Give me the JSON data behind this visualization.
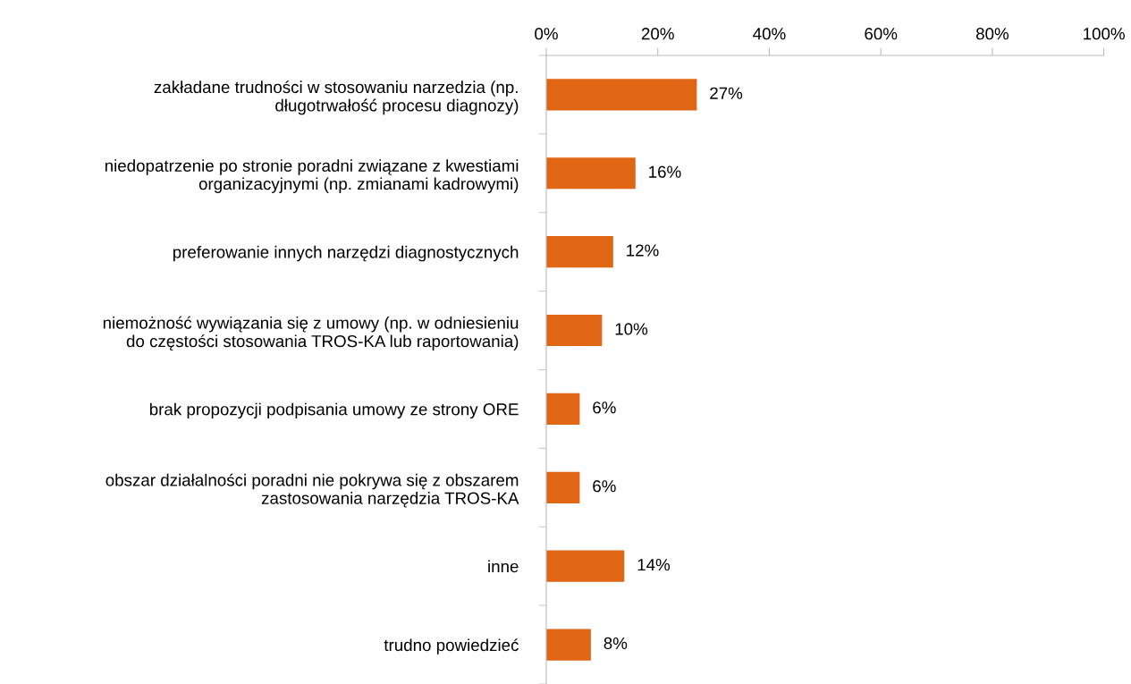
{
  "chart_data": {
    "type": "bar",
    "orientation": "horizontal",
    "categories": [
      "zakładane trudności w stosowaniu narzedzia (np.\ndługotrwałość procesu diagnozy)",
      "niedopatrzenie po stronie poradni związane z kwestiami\norganizacyjnymi (np. zmianami kadrowymi)",
      "preferowanie innych narzędzi diagnostycznych",
      "niemożność wywiązania się z umowy (np. w odniesieniu\ndo częstości stosowania TROS-KA lub raportowania)",
      "brak propozycji podpisania umowy ze strony ORE",
      "obszar działalności poradni nie pokrywa się z obszarem\nzastosowania narzędzia TROS-KA",
      "inne",
      "trudno powiedzieć"
    ],
    "values": [
      27,
      16,
      12,
      10,
      6,
      6,
      14,
      8
    ],
    "value_labels": [
      "27%",
      "16%",
      "12%",
      "10%",
      "6%",
      "6%",
      "14%",
      "8%"
    ],
    "color": "#e06514",
    "xlim": [
      0,
      100
    ],
    "xticks": [
      {
        "value": 0,
        "label": "0%"
      },
      {
        "value": 20,
        "label": "20%"
      },
      {
        "value": 40,
        "label": "40%"
      },
      {
        "value": 60,
        "label": "60%"
      },
      {
        "value": 80,
        "label": "80%"
      },
      {
        "value": 100,
        "label": "100%"
      }
    ],
    "grid": false
  }
}
